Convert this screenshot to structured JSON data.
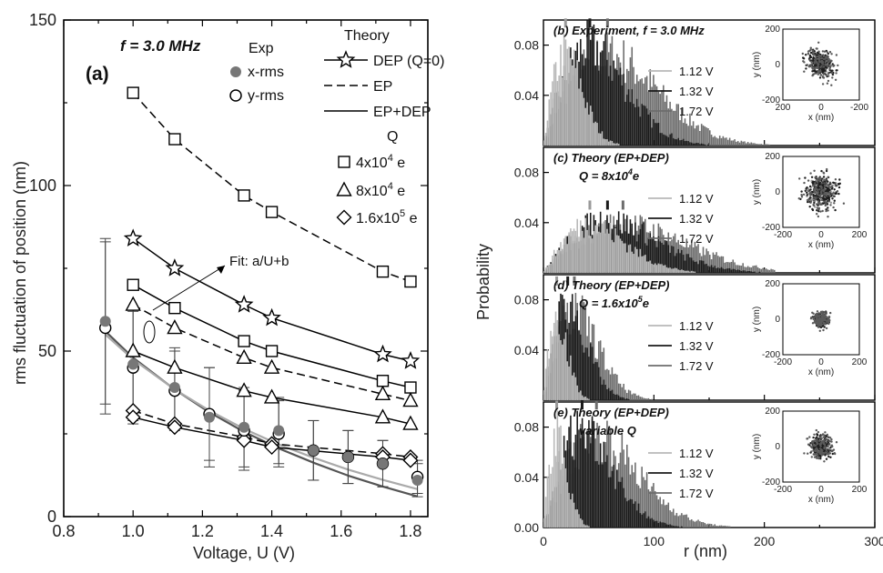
{
  "chart_data": [
    {
      "panel": "a",
      "type": "scatter",
      "title": "f = 3.0 MHz",
      "panel_label": "(a)",
      "xlabel": "Voltage, U (V)",
      "ylabel": "rms fluctuation of position  (nm)",
      "xlim": [
        0.8,
        1.85
      ],
      "ylim": [
        0,
        150
      ],
      "xticks": [
        "0.8",
        "1.0",
        "1.2",
        "1.4",
        "1.6",
        "1.8"
      ],
      "yticks": [
        "0",
        "50",
        "100",
        "150"
      ],
      "legend": {
        "exp_title": "Exp",
        "theory_title": "Theory",
        "q_title": "Q",
        "x_rms": "x-rms",
        "y_rms": "y-rms",
        "dep": "DEP (Q=0)",
        "ep": "EP",
        "epdep": "EP+DEP",
        "q1_base": "4x10",
        "q1_exp": "4",
        "q1_unit": " e",
        "q2_base": "8x10",
        "q2_exp": "4",
        "q2_unit": " e",
        "q3_base": "1.6x10",
        "q3_exp": "5",
        "q3_unit": " e"
      },
      "annotation": "Fit: a/U+b",
      "series": [
        {
          "name": "x-rms",
          "marker": "filled-circle",
          "x": [
            0.92,
            1.0,
            1.12,
            1.22,
            1.32,
            1.42,
            1.52,
            1.62,
            1.72,
            1.82
          ],
          "y": [
            59,
            46,
            39,
            30,
            27,
            26,
            20,
            18,
            16,
            11
          ],
          "err": [
            25,
            17,
            12,
            15,
            12,
            10,
            9,
            8,
            7,
            5
          ]
        },
        {
          "name": "y-rms",
          "marker": "open-circle",
          "x": [
            0.92,
            1.0,
            1.12,
            1.22,
            1.32,
            1.42,
            1.52,
            1.62,
            1.72,
            1.82
          ],
          "y": [
            57,
            45,
            38,
            31,
            26,
            25,
            20,
            18,
            16,
            12
          ],
          "err": [
            26,
            17,
            12,
            14,
            12,
            10,
            9,
            8,
            7,
            5
          ]
        },
        {
          "name": "DEP (Q=0)",
          "marker": "star",
          "line": "solid",
          "x": [
            1.0,
            1.12,
            1.32,
            1.4,
            1.72,
            1.8
          ],
          "y": [
            84,
            75,
            64,
            60,
            49,
            47
          ]
        },
        {
          "name": "EP 4x10^4 e",
          "marker": "square",
          "line": "dashed",
          "x": [
            1.0,
            1.12,
            1.32,
            1.4,
            1.72,
            1.8
          ],
          "y": [
            128,
            114,
            97,
            92,
            74,
            71
          ]
        },
        {
          "name": "EP+DEP 4x10^4 e",
          "marker": "square",
          "line": "solid",
          "x": [
            1.0,
            1.12,
            1.32,
            1.4,
            1.72,
            1.8
          ],
          "y": [
            70,
            63,
            53,
            50,
            41,
            39
          ]
        },
        {
          "name": "EP 8x10^4 e",
          "marker": "triangle",
          "line": "dashed",
          "x": [
            1.0,
            1.12,
            1.32,
            1.4,
            1.72,
            1.8
          ],
          "y": [
            64,
            57,
            48,
            45,
            37,
            35
          ]
        },
        {
          "name": "EP+DEP 8x10^4 e",
          "marker": "triangle",
          "line": "solid",
          "x": [
            1.0,
            1.12,
            1.32,
            1.4,
            1.72,
            1.8
          ],
          "y": [
            50,
            45,
            38,
            36,
            30,
            28
          ]
        },
        {
          "name": "EP 1.6x10^5 e",
          "marker": "diamond",
          "line": "dashed",
          "x": [
            1.0,
            1.12,
            1.32,
            1.4,
            1.72,
            1.8
          ],
          "y": [
            32,
            28,
            24,
            22,
            19,
            18
          ]
        },
        {
          "name": "EP+DEP 1.6x10^5 e",
          "marker": "diamond",
          "line": "solid",
          "x": [
            1.0,
            1.12,
            1.32,
            1.4,
            1.72,
            1.8
          ],
          "y": [
            30,
            27,
            23,
            21,
            18,
            17
          ]
        },
        {
          "name": "Fit x-rms",
          "line": "fit",
          "x": [
            0.92,
            1.0,
            1.12,
            1.22,
            1.32,
            1.42,
            1.52,
            1.62,
            1.72,
            1.82
          ],
          "y": [
            56,
            48,
            38.4,
            31.5,
            25.6,
            20.6,
            16.3,
            12.4,
            9.1,
            6.1
          ]
        },
        {
          "name": "Fit y-rms",
          "line": "fit",
          "x": [
            0.92,
            1.0,
            1.12,
            1.22,
            1.32,
            1.42,
            1.52,
            1.62,
            1.72,
            1.82
          ],
          "y": [
            55,
            47.5,
            38.4,
            32,
            26.5,
            21.8,
            17.8,
            14.2,
            11.1,
            8.3
          ]
        }
      ]
    },
    {
      "type": "bar",
      "stack_panels": [
        "b",
        "c",
        "d",
        "e"
      ],
      "xlabel": "r (nm)",
      "ylabel": "Probability",
      "xlim": [
        0,
        300
      ],
      "ylim": [
        0,
        0.1
      ],
      "xticks": [
        "0",
        "100",
        "200",
        "300"
      ],
      "yticks": [
        "0.00",
        "0.04",
        "0.08"
      ],
      "legend_labels": [
        "1.12 V",
        "1.32 V",
        "1.72 V"
      ],
      "inset": {
        "xlabel": "x (nm)",
        "ylabel": "y (nm)",
        "xticks": [
          "200",
          "0",
          "-200"
        ],
        "xticks_theory": [
          "-200",
          "0",
          "200"
        ],
        "yticks": [
          "200",
          "0",
          "-200"
        ]
      },
      "panels": [
        {
          "id": "b",
          "title": "(b) Experiment, f = 3.0 MHz",
          "peaks": [
            20,
            42,
            58
          ],
          "scale": 45,
          "height": 0.09
        },
        {
          "id": "c",
          "title": "(c) Theory (EP+DEP)",
          "subtitle_base": "Q = 8x10",
          "subtitle_exp": "4",
          "subtitle_unit": "e",
          "peaks": [
            42,
            58,
            72
          ],
          "scale": 25,
          "height": 0.048
        },
        {
          "id": "d",
          "title": "(d) Theory (EP+DEP)",
          "subtitle_base": "Q = 1.6x10",
          "subtitle_exp": "5",
          "subtitle_unit": "e",
          "peaks": [
            12,
            22,
            28
          ],
          "scale": 22,
          "height": 0.087
        },
        {
          "id": "e",
          "title": "(e) Theory (EP+DEP)",
          "subtitle_plain": "variable Q",
          "peaks": [
            12,
            35,
            48
          ],
          "scale": 30,
          "height": 0.091
        }
      ]
    }
  ],
  "colors": {
    "x_rms": "#777777",
    "v112": "#b8b8b8",
    "v132": "#1a1a1a",
    "v172": "#6d6d6d"
  }
}
